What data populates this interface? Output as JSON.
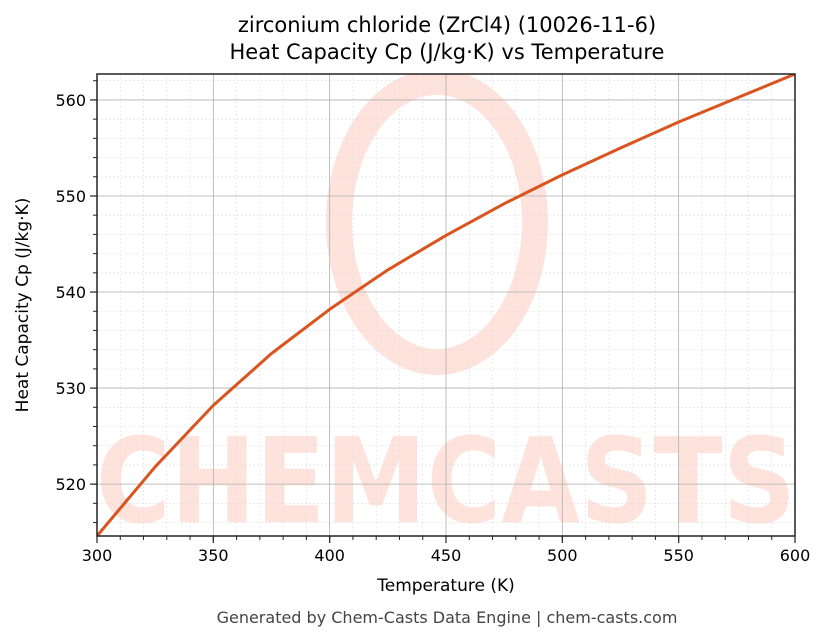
{
  "title_line1": "zirconium chloride (ZrCl4) (10026-11-6)",
  "title_line2": "Heat Capacity Cp (J/kg·K) vs Temperature",
  "footer": "Generated by Chem-Casts Data Engine | chem-casts.com",
  "watermark": "CHEMCASTS",
  "colors": {
    "line": "#d9541e",
    "watermark": "#fde3dc",
    "grid_major": "#b0b0b0",
    "grid_minor": "#dddddd"
  },
  "chart_data": {
    "type": "line",
    "title": "zirconium chloride (ZrCl4) (10026-11-6) Heat Capacity Cp (J/kg·K) vs Temperature",
    "xlabel": "Temperature (K)",
    "ylabel": "Heat Capacity Cp (J/kg·K)",
    "xlim": [
      300,
      600
    ],
    "ylim": [
      514.6,
      562.7
    ],
    "xticks": [
      300,
      350,
      400,
      450,
      500,
      550,
      600
    ],
    "yticks": [
      520,
      530,
      540,
      550,
      560
    ],
    "grid": true,
    "legend": null,
    "series": [
      {
        "name": "Cp",
        "x": [
          300,
          325,
          350,
          375,
          400,
          425,
          450,
          475,
          500,
          525,
          550,
          575,
          600
        ],
        "values": [
          514.6,
          521.8,
          528.2,
          533.6,
          538.2,
          542.3,
          545.9,
          549.2,
          552.2,
          555.0,
          557.7,
          560.2,
          562.7
        ]
      }
    ]
  }
}
